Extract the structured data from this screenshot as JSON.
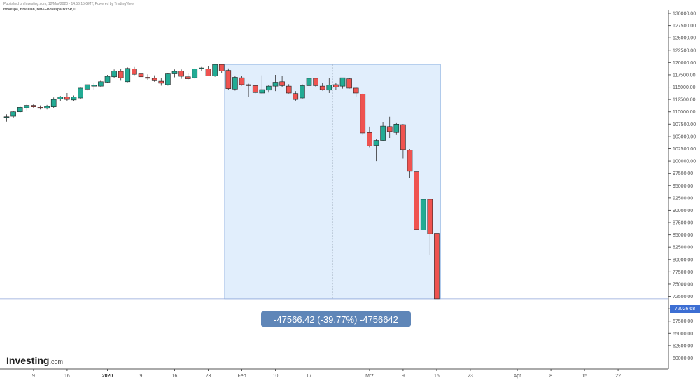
{
  "header": {
    "published": "Published on Investing.com, 12/Mar/2020 - 14:56:15 GMT, Powered by TradingView",
    "symbol": "Bovespa, Brasilian, BM&FBovespa:BVSP, D"
  },
  "measurement": {
    "label": "-47566.42 (-39.77%) -4756642",
    "from_value": 119593.1,
    "to_value": 72026.68
  },
  "last_price_label": "72026.68",
  "logo": {
    "main": "Investing",
    "suffix": ".com"
  },
  "colors": {
    "up": "#22ab94",
    "down": "#ef5350",
    "wick": "#333333",
    "measure_fill": "#e1eefc",
    "measure_box": "#5f86b8",
    "last_price": "#3c6ed3"
  },
  "chart_data": {
    "type": "candlestick",
    "y_axis_ticks": [
      "130000.00",
      "127500.00",
      "125000.00",
      "122500.00",
      "120000.00",
      "117500.00",
      "115000.00",
      "112500.00",
      "110000.00",
      "107500.00",
      "105000.00",
      "102500.00",
      "100000.00",
      "97500.00",
      "95000.00",
      "92500.00",
      "90000.00",
      "87500.00",
      "85000.00",
      "82500.00",
      "80000.00",
      "77500.00",
      "75000.00",
      "72500.00",
      "70000.00",
      "67500.00",
      "65000.00",
      "62500.00",
      "60000.00"
    ],
    "ylim": [
      58500,
      131500
    ],
    "x_axis_ticks": [
      {
        "label": "9",
        "index": 4
      },
      {
        "label": "16",
        "index": 9
      },
      {
        "label": "2020",
        "index": 15,
        "bold": true
      },
      {
        "label": "9",
        "index": 20
      },
      {
        "label": "16",
        "index": 25
      },
      {
        "label": "23",
        "index": 30
      },
      {
        "label": "Feb",
        "index": 35
      },
      {
        "label": "10",
        "index": 40
      },
      {
        "label": "17",
        "index": 45
      },
      {
        "label": "Mrz",
        "index": 54
      },
      {
        "label": "9",
        "index": 59
      },
      {
        "label": "16",
        "index": 64
      },
      {
        "label": "23",
        "index": 69
      },
      {
        "label": "Apr",
        "index": 76
      },
      {
        "label": "8",
        "index": 81
      },
      {
        "label": "15",
        "index": 86
      },
      {
        "label": "22",
        "index": 91
      }
    ],
    "candles": [
      {
        "o": 109000,
        "h": 109500,
        "l": 108000,
        "c": 109000
      },
      {
        "o": 109100,
        "h": 110200,
        "l": 108800,
        "c": 110000
      },
      {
        "o": 110000,
        "h": 111200,
        "l": 109800,
        "c": 110900
      },
      {
        "o": 110800,
        "h": 111500,
        "l": 110300,
        "c": 111300
      },
      {
        "o": 111300,
        "h": 111600,
        "l": 110800,
        "c": 111000
      },
      {
        "o": 110900,
        "h": 111300,
        "l": 110500,
        "c": 110700
      },
      {
        "o": 110700,
        "h": 111400,
        "l": 110500,
        "c": 111100
      },
      {
        "o": 111000,
        "h": 112900,
        "l": 110800,
        "c": 112500
      },
      {
        "o": 112600,
        "h": 113200,
        "l": 112200,
        "c": 113000
      },
      {
        "o": 113000,
        "h": 113800,
        "l": 112200,
        "c": 112500
      },
      {
        "o": 112400,
        "h": 113300,
        "l": 112200,
        "c": 113000
      },
      {
        "o": 112800,
        "h": 114900,
        "l": 112600,
        "c": 114800
      },
      {
        "o": 114600,
        "h": 115500,
        "l": 114300,
        "c": 115500
      },
      {
        "o": 115200,
        "h": 115800,
        "l": 114400,
        "c": 115400
      },
      {
        "o": 115200,
        "h": 116300,
        "l": 115100,
        "c": 116100
      },
      {
        "o": 116000,
        "h": 117500,
        "l": 115800,
        "c": 117200
      },
      {
        "o": 117100,
        "h": 118600,
        "l": 116900,
        "c": 118300
      },
      {
        "o": 118200,
        "h": 118700,
        "l": 116300,
        "c": 116900
      },
      {
        "o": 116100,
        "h": 119000,
        "l": 116000,
        "c": 118800
      },
      {
        "o": 118700,
        "h": 119100,
        "l": 117400,
        "c": 117600
      },
      {
        "o": 117700,
        "h": 118300,
        "l": 116700,
        "c": 117100
      },
      {
        "o": 117000,
        "h": 117600,
        "l": 116400,
        "c": 116800
      },
      {
        "o": 116800,
        "h": 117400,
        "l": 116100,
        "c": 116300
      },
      {
        "o": 116200,
        "h": 116900,
        "l": 115300,
        "c": 115800
      },
      {
        "o": 115500,
        "h": 117800,
        "l": 115300,
        "c": 117700
      },
      {
        "o": 117700,
        "h": 118600,
        "l": 117000,
        "c": 118200
      },
      {
        "o": 118300,
        "h": 118600,
        "l": 116700,
        "c": 117200
      },
      {
        "o": 117100,
        "h": 117800,
        "l": 116400,
        "c": 116700
      },
      {
        "o": 116900,
        "h": 118800,
        "l": 116700,
        "c": 118700
      },
      {
        "o": 118800,
        "h": 119100,
        "l": 118200,
        "c": 118900
      },
      {
        "o": 118700,
        "h": 119300,
        "l": 117200,
        "c": 117300
      },
      {
        "o": 117300,
        "h": 119700,
        "l": 117100,
        "c": 119600
      },
      {
        "o": 119600,
        "h": 119700,
        "l": 117900,
        "c": 118300
      },
      {
        "o": 118400,
        "h": 118800,
        "l": 114500,
        "c": 114700
      },
      {
        "o": 114600,
        "h": 117300,
        "l": 114300,
        "c": 117000
      },
      {
        "o": 116900,
        "h": 117200,
        "l": 115300,
        "c": 115500
      },
      {
        "o": 115500,
        "h": 115700,
        "l": 113000,
        "c": 115300
      },
      {
        "o": 115300,
        "h": 115400,
        "l": 113700,
        "c": 113900
      },
      {
        "o": 113800,
        "h": 117400,
        "l": 113700,
        "c": 114500
      },
      {
        "o": 114400,
        "h": 115500,
        "l": 113900,
        "c": 115200
      },
      {
        "o": 115200,
        "h": 117500,
        "l": 114200,
        "c": 116000
      },
      {
        "o": 116100,
        "h": 117200,
        "l": 115000,
        "c": 115300
      },
      {
        "o": 115200,
        "h": 115600,
        "l": 113700,
        "c": 113800
      },
      {
        "o": 113700,
        "h": 114200,
        "l": 112200,
        "c": 112500
      },
      {
        "o": 112800,
        "h": 115600,
        "l": 112600,
        "c": 115300
      },
      {
        "o": 115300,
        "h": 117500,
        "l": 115200,
        "c": 116800
      },
      {
        "o": 116800,
        "h": 116900,
        "l": 115000,
        "c": 115300
      },
      {
        "o": 115200,
        "h": 115800,
        "l": 114300,
        "c": 114500
      },
      {
        "o": 114400,
        "h": 116800,
        "l": 113800,
        "c": 115400
      },
      {
        "o": 115500,
        "h": 115800,
        "l": 114500,
        "c": 115000
      },
      {
        "o": 115200,
        "h": 116900,
        "l": 114700,
        "c": 116900
      },
      {
        "o": 116700,
        "h": 116800,
        "l": 114700,
        "c": 114800
      },
      {
        "o": 114800,
        "h": 115000,
        "l": 113100,
        "c": 113800
      },
      {
        "o": 113600,
        "h": 113700,
        "l": 105300,
        "c": 105700
      },
      {
        "o": 105800,
        "h": 107000,
        "l": 102800,
        "c": 103100
      },
      {
        "o": 103200,
        "h": 104400,
        "l": 100000,
        "c": 104200
      },
      {
        "o": 104200,
        "h": 107900,
        "l": 104100,
        "c": 107100
      },
      {
        "o": 107000,
        "h": 109000,
        "l": 104700,
        "c": 106000
      },
      {
        "o": 105800,
        "h": 107700,
        "l": 105300,
        "c": 107500
      },
      {
        "o": 107400,
        "h": 107500,
        "l": 100500,
        "c": 102300
      },
      {
        "o": 102200,
        "h": 102400,
        "l": 96600,
        "c": 97900
      },
      {
        "o": 97800,
        "h": 97800,
        "l": 86100,
        "c": 86100
      },
      {
        "o": 86000,
        "h": 92200,
        "l": 86000,
        "c": 92200
      },
      {
        "o": 92200,
        "h": 92200,
        "l": 80900,
        "c": 85200
      },
      {
        "o": 85300,
        "h": 85300,
        "l": 72026.68,
        "c": 72026.68
      }
    ]
  }
}
